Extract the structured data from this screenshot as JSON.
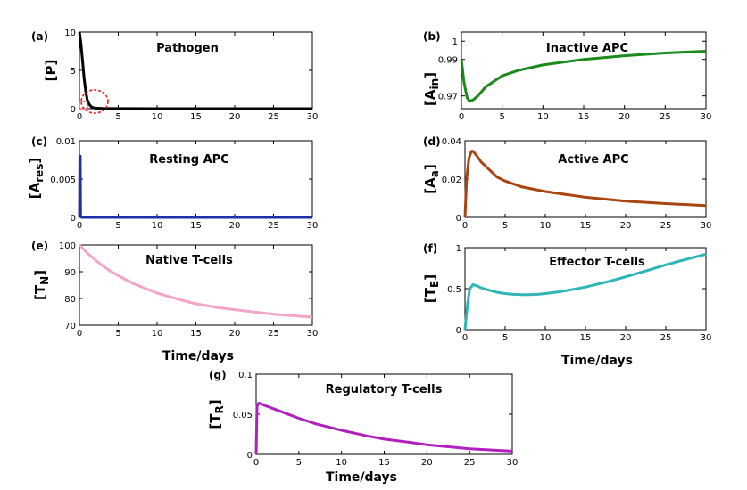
{
  "chart_data": [
    {
      "id": "a",
      "type": "line",
      "panel_label": "(a)",
      "title": "Pathogen",
      "ylabel": "[P]",
      "xlim": [
        0,
        30
      ],
      "ylim": [
        0,
        10
      ],
      "xticks": [
        0,
        5,
        10,
        15,
        20,
        25,
        30
      ],
      "yticks": [
        0,
        5,
        10
      ],
      "ytick_labels": [
        "0",
        "5",
        "10"
      ],
      "color": "#000000",
      "x": [
        0,
        0.2,
        0.4,
        0.6,
        0.8,
        1.0,
        1.3,
        1.6,
        2.0,
        3.0,
        5,
        10,
        15,
        20,
        25,
        30
      ],
      "y": [
        10,
        8.5,
        6.2,
        4.0,
        2.3,
        1.2,
        0.5,
        0.2,
        0.07,
        0.02,
        0.01,
        0,
        0,
        0,
        0,
        0
      ],
      "annotation": "red dashed circle highlighting near-zero region around t≈2"
    },
    {
      "id": "b",
      "type": "line",
      "panel_label": "(b)",
      "title": "Inactive APC",
      "ylabel": "[A",
      "ylabel_sub": "in",
      "ylabel_close": "]",
      "xlim": [
        0,
        30
      ],
      "ylim": [
        0.963,
        1.005
      ],
      "xticks": [
        0,
        5,
        10,
        15,
        20,
        25,
        30
      ],
      "yticks": [
        0.97,
        0.99,
        1.0
      ],
      "ytick_labels": [
        "0.97",
        "0.99",
        "1"
      ],
      "color": "#1a8a1a",
      "x": [
        0,
        0.3,
        0.7,
        1,
        1.5,
        2,
        3,
        4,
        5,
        7,
        10,
        15,
        20,
        25,
        30
      ],
      "y": [
        0.99,
        0.978,
        0.969,
        0.967,
        0.968,
        0.97,
        0.975,
        0.978,
        0.981,
        0.984,
        0.987,
        0.99,
        0.992,
        0.9935,
        0.9945
      ]
    },
    {
      "id": "c",
      "type": "line",
      "panel_label": "(c)",
      "title": "Resting APC",
      "ylabel": "[A",
      "ylabel_sub": "res",
      "ylabel_close": "]",
      "xlim": [
        0,
        30
      ],
      "ylim": [
        0,
        0.01
      ],
      "xticks": [
        0,
        5,
        10,
        15,
        20,
        25,
        30
      ],
      "yticks": [
        0,
        0.005,
        0.01
      ],
      "ytick_labels": [
        "0",
        "0.005",
        "0.01"
      ],
      "color": "#1f2fa8",
      "x": [
        0,
        0.05,
        0.1,
        0.15,
        0.3,
        1,
        5,
        10,
        15,
        20,
        25,
        30
      ],
      "y": [
        0,
        0.008,
        0.008,
        0.0001,
        0,
        0,
        0,
        0,
        0,
        0,
        0,
        0
      ]
    },
    {
      "id": "d",
      "type": "line",
      "panel_label": "(d)",
      "title": "Active APC",
      "ylabel": "[A",
      "ylabel_sub": "a",
      "ylabel_close": "]",
      "xlim": [
        0,
        30
      ],
      "ylim": [
        0,
        0.04
      ],
      "xticks": [
        0,
        5,
        10,
        15,
        20,
        25,
        30
      ],
      "yticks": [
        0,
        0.02,
        0.04
      ],
      "ytick_labels": [
        "0",
        "0.02",
        "0.04"
      ],
      "color": "#a84510",
      "x": [
        0,
        0.2,
        0.5,
        0.8,
        1.0,
        1.5,
        2,
        3,
        4,
        5,
        7,
        10,
        15,
        20,
        25,
        30
      ],
      "y": [
        0,
        0.02,
        0.031,
        0.0345,
        0.0345,
        0.032,
        0.029,
        0.025,
        0.021,
        0.019,
        0.016,
        0.0135,
        0.0105,
        0.0085,
        0.0072,
        0.0062
      ]
    },
    {
      "id": "e",
      "type": "line",
      "panel_label": "(e)",
      "title": "Native T-cells",
      "ylabel": "[T",
      "ylabel_sub": "N",
      "ylabel_close": "]",
      "xlabel": "Time/days",
      "xlim": [
        0,
        30
      ],
      "ylim": [
        70,
        100
      ],
      "xticks": [
        0,
        5,
        10,
        15,
        20,
        25,
        30
      ],
      "yticks": [
        70,
        80,
        90,
        100
      ],
      "ytick_labels": [
        "70",
        "80",
        "90",
        "100"
      ],
      "color": "#f4a4c8",
      "x": [
        0,
        1,
        2,
        3,
        4,
        5,
        7,
        10,
        13,
        15,
        18,
        20,
        25,
        30
      ],
      "y": [
        100,
        97,
        94.5,
        92.2,
        90.2,
        88.5,
        85.5,
        82,
        79.5,
        78,
        76.5,
        75.8,
        74.1,
        73
      ]
    },
    {
      "id": "f",
      "type": "line",
      "panel_label": "(f)",
      "title": "Effector T-cells",
      "ylabel": "[T",
      "ylabel_sub": "E",
      "ylabel_close": "]",
      "xlabel": "Time/days",
      "xlim": [
        0,
        30
      ],
      "ylim": [
        0,
        1
      ],
      "xticks": [
        0,
        5,
        10,
        15,
        20,
        25,
        30
      ],
      "yticks": [
        0,
        0.5,
        1
      ],
      "ytick_labels": [
        "0",
        "0.5",
        "1"
      ],
      "color": "#2db5b8",
      "x": [
        0,
        0.3,
        0.6,
        1,
        1.5,
        2,
        3,
        4,
        5,
        6,
        7.5,
        9,
        10,
        12,
        15,
        18,
        20,
        23,
        25,
        28,
        30
      ],
      "y": [
        0,
        0.3,
        0.5,
        0.55,
        0.535,
        0.51,
        0.48,
        0.455,
        0.44,
        0.43,
        0.425,
        0.43,
        0.44,
        0.465,
        0.52,
        0.59,
        0.645,
        0.73,
        0.79,
        0.87,
        0.92
      ]
    },
    {
      "id": "g",
      "type": "line",
      "panel_label": "(g)",
      "title": "Regulatory T-cells",
      "ylabel": "[T",
      "ylabel_sub": "R",
      "ylabel_close": "]",
      "xlabel": "Time/days",
      "xlim": [
        0,
        30
      ],
      "ylim": [
        0,
        0.1
      ],
      "xticks": [
        0,
        5,
        10,
        15,
        20,
        25,
        30
      ],
      "yticks": [
        0,
        0.05,
        0.1
      ],
      "ytick_labels": [
        "0",
        "0.05",
        "0.1"
      ],
      "color": "#b21fbf",
      "x": [
        0,
        0.1,
        0.3,
        0.6,
        1,
        2,
        3,
        5,
        7,
        10,
        13,
        15,
        18,
        20,
        25,
        30
      ],
      "y": [
        0,
        0.06,
        0.064,
        0.063,
        0.061,
        0.057,
        0.053,
        0.045,
        0.038,
        0.03,
        0.023,
        0.019,
        0.015,
        0.012,
        0.007,
        0.004
      ]
    }
  ]
}
